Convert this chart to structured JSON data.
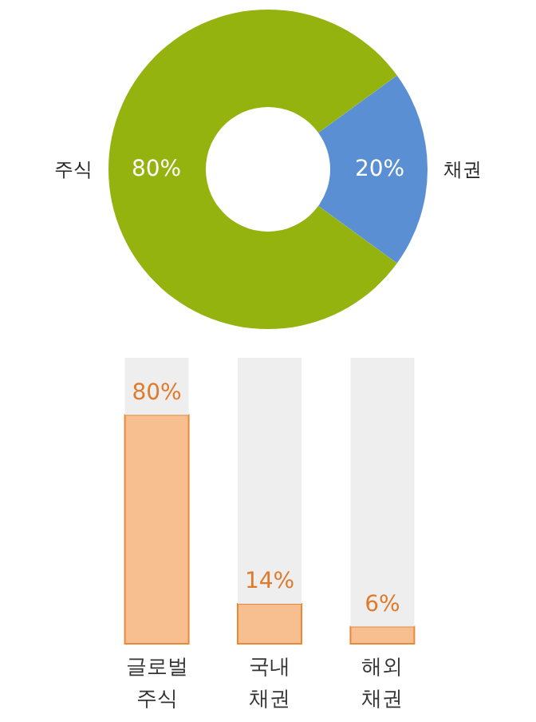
{
  "chart_data": [
    {
      "type": "donut",
      "categories": [
        "주식",
        "채권"
      ],
      "values": [
        80,
        20
      ],
      "colors": [
        "#95b30f",
        "#5b8fd4"
      ],
      "value_labels": [
        "80%",
        "20%"
      ]
    },
    {
      "type": "bar",
      "stacked": true,
      "categories": [
        "글로벌\n주식",
        "국내\n채권",
        "해외\n채권"
      ],
      "ylim": [
        0,
        100
      ],
      "tick_labels": "x",
      "series": [
        {
          "color": "#f7bf8f",
          "values": [
            80,
            14,
            6
          ],
          "value_labels": [
            "80%",
            "14%",
            "6%"
          ]
        },
        {
          "color": "#eeeeee",
          "values": [
            20,
            86,
            94
          ]
        }
      ]
    }
  ]
}
